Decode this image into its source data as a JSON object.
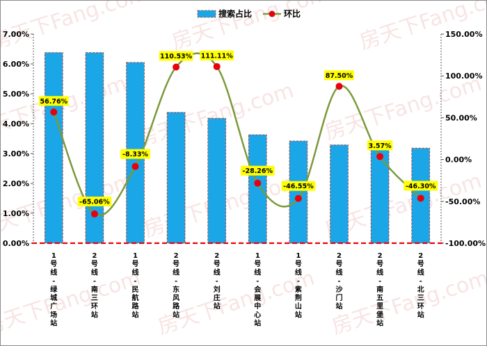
{
  "watermark": "房天下Fang.com",
  "colors": {
    "bar": "#1ba6e8",
    "barEdge": "#c0392b",
    "line": "#7a9a3a",
    "dot": "#e8000b",
    "label": "#ffff00",
    "zero": "#e8000b"
  },
  "chart_data": {
    "type": "bar",
    "categories": [
      "1号线-绿城广场站",
      "2号线-南三环站",
      "1号线-民航路站",
      "2号线-东风路站",
      "2号线-刘庄站",
      "1号线-会展中心站",
      "1号线-紫荆山站",
      "2号线-沙门站",
      "2号线-南五里堡站",
      "2号线-北三环站"
    ],
    "category_lines": [
      [
        "1",
        "号",
        "线",
        "-",
        "绿",
        "城",
        "广",
        "场",
        "站"
      ],
      [
        "2",
        "号",
        "线",
        "-",
        "南",
        "三",
        "环",
        "站"
      ],
      [
        "1",
        "号",
        "线",
        "-",
        "民",
        "航",
        "路",
        "站"
      ],
      [
        "2",
        "号",
        "线",
        "-",
        "东",
        "风",
        "路",
        "站"
      ],
      [
        "2",
        "号",
        "线",
        "-",
        "刘",
        "庄",
        "站"
      ],
      [
        "1",
        "号",
        "线",
        "-",
        "会",
        "展",
        "中",
        "心",
        "站"
      ],
      [
        "1",
        "号",
        "线",
        "-",
        "紫",
        "荆",
        "山",
        "站"
      ],
      [
        "2",
        "号",
        "线",
        "-",
        "沙",
        "门",
        "站"
      ],
      [
        "2",
        "号",
        "线",
        "-",
        "南",
        "五",
        "里",
        "堡",
        "站"
      ],
      [
        "2",
        "号",
        "线",
        "-",
        "北",
        "三",
        "环",
        "站"
      ]
    ],
    "series": [
      {
        "name": "搜索占比",
        "type": "bar",
        "axis": "left",
        "values": [
          6.38,
          6.38,
          6.05,
          4.38,
          4.18,
          3.63,
          3.42,
          3.29,
          3.18,
          3.18
        ]
      },
      {
        "name": "环比",
        "type": "line",
        "axis": "right",
        "values": [
          56.76,
          -65.06,
          -8.33,
          110.53,
          111.11,
          -28.26,
          -46.55,
          87.5,
          3.57,
          -46.3
        ],
        "labels": [
          "56.76%",
          "-65.06%",
          "-8.33%",
          "110.53%",
          "111.11%",
          "-28.26%",
          "-46.55%",
          "87.50%",
          "3.57%",
          "-46.30%"
        ]
      }
    ],
    "yleft": {
      "lim": [
        0,
        7
      ],
      "ticks": [
        "0.00%",
        "1.00%",
        "2.00%",
        "3.00%",
        "4.00%",
        "5.00%",
        "6.00%",
        "7.00%"
      ]
    },
    "yright": {
      "lim": [
        -100,
        150
      ],
      "ticks": [
        "-100.00%",
        "-50.00%",
        "0.00%",
        "50.00%",
        "100.00%",
        "150.00%"
      ]
    },
    "legend": "top-center",
    "grid": false
  }
}
